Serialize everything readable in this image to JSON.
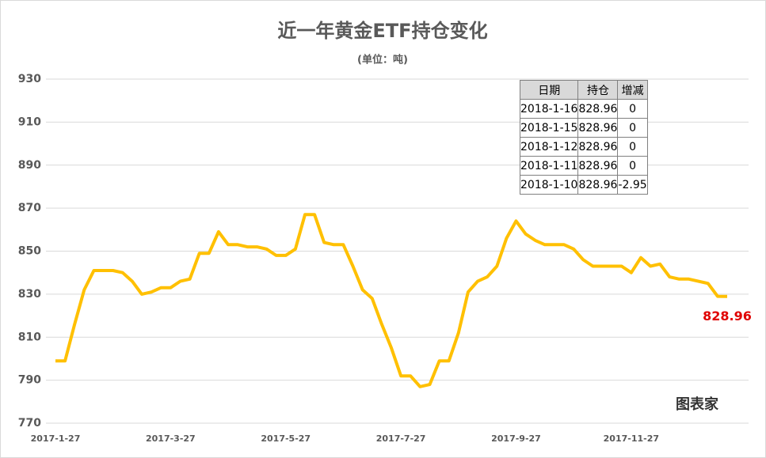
{
  "chart_data": {
    "type": "line",
    "title": "近一年黄金ETF持仓变化",
    "subtitle": "(单位：吨)",
    "categories": [
      "2017-1-27",
      null,
      null,
      null,
      null,
      null,
      null,
      null,
      null,
      null,
      null,
      null,
      "2017-3-27",
      null,
      null,
      null,
      null,
      null,
      null,
      null,
      null,
      null,
      null,
      null,
      "2017-5-27",
      null,
      null,
      null,
      null,
      null,
      null,
      null,
      null,
      null,
      null,
      null,
      "2017-7-27",
      null,
      null,
      null,
      null,
      null,
      null,
      null,
      null,
      null,
      null,
      null,
      "2017-9-27",
      null,
      null,
      null,
      null,
      null,
      null,
      null,
      null,
      null,
      null,
      null,
      "2017-11-27",
      null,
      null,
      null,
      null,
      null,
      null,
      null,
      null,
      null,
      null
    ],
    "values": [
      799,
      799,
      816,
      832,
      841,
      841,
      841,
      840,
      836,
      830,
      831,
      833,
      833,
      836,
      837,
      849,
      849,
      859,
      853,
      853,
      852,
      852,
      851,
      848,
      848,
      851,
      867,
      867,
      854,
      853,
      853,
      843,
      832,
      828,
      816,
      805,
      792,
      792,
      787,
      788,
      799,
      799,
      812,
      831,
      836,
      838,
      843,
      856,
      864,
      858,
      855,
      853,
      853,
      853,
      851,
      846,
      843,
      843,
      843,
      843,
      840,
      847,
      843,
      844,
      838,
      837,
      837,
      836,
      835,
      829,
      828.96
    ],
    "color": "#ffc000",
    "label_color": "#e00000",
    "ylim": [
      770,
      930
    ],
    "yticks": [
      770,
      790,
      810,
      830,
      850,
      870,
      890,
      910,
      930
    ],
    "grid": true
  },
  "table": {
    "columns": [
      "日期",
      "持仓",
      "增减"
    ],
    "rows": [
      [
        "2018-1-16",
        "828.96",
        "0"
      ],
      [
        "2018-1-15",
        "828.96",
        "0"
      ],
      [
        "2018-1-12",
        "828.96",
        "0"
      ],
      [
        "2018-1-11",
        "828.96",
        "0"
      ],
      [
        "2018-1-10",
        "828.96",
        "-2.95"
      ]
    ]
  },
  "watermark": "图表家"
}
